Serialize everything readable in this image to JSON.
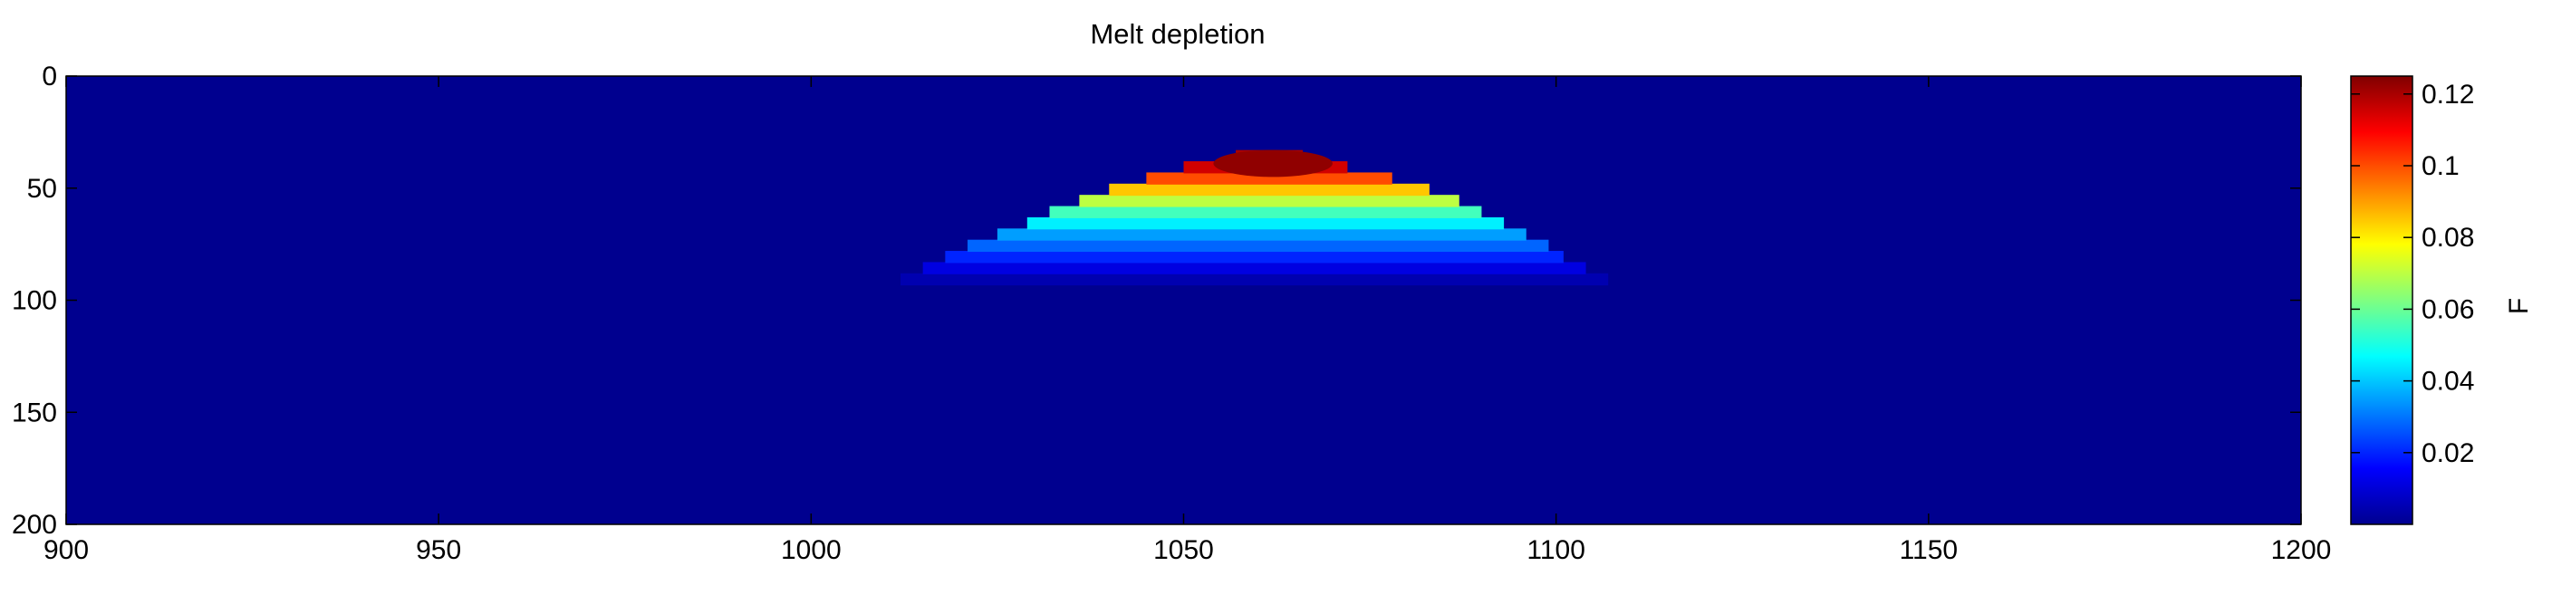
{
  "chart_data": {
    "type": "heatmap",
    "title": "Melt depletion",
    "xlabel": "",
    "ylabel": "",
    "xlim": [
      900,
      1200
    ],
    "ylim": [
      0,
      200
    ],
    "y_reversed": true,
    "x_ticks": [
      "900",
      "950",
      "1000",
      "1050",
      "1100",
      "1150",
      "1200"
    ],
    "y_ticks": [
      "0",
      "50",
      "100",
      "150",
      "200"
    ],
    "colormap": "jet",
    "background_value": 0,
    "colorbar": {
      "label": "F",
      "range": [
        0,
        0.125
      ],
      "ticks": [
        "0.02",
        "0.04",
        "0.06",
        "0.08",
        "0.1",
        "0.12"
      ]
    },
    "melt_region": {
      "peak_x": 1062,
      "peak_value": 0.123,
      "top_depth": 33,
      "rows": [
        {
          "depth": 33,
          "x_from": 1057,
          "x_to": 1066,
          "value": 0.12
        },
        {
          "depth": 38,
          "x_from": 1050,
          "x_to": 1072,
          "value": 0.115
        },
        {
          "depth": 43,
          "x_from": 1045,
          "x_to": 1078,
          "value": 0.1
        },
        {
          "depth": 48,
          "x_from": 1040,
          "x_to": 1083,
          "value": 0.085
        },
        {
          "depth": 53,
          "x_from": 1036,
          "x_to": 1087,
          "value": 0.07
        },
        {
          "depth": 58,
          "x_from": 1032,
          "x_to": 1090,
          "value": 0.055
        },
        {
          "depth": 63,
          "x_from": 1029,
          "x_to": 1093,
          "value": 0.045
        },
        {
          "depth": 68,
          "x_from": 1025,
          "x_to": 1096,
          "value": 0.035
        },
        {
          "depth": 73,
          "x_from": 1021,
          "x_to": 1099,
          "value": 0.028
        },
        {
          "depth": 78,
          "x_from": 1018,
          "x_to": 1101,
          "value": 0.02
        },
        {
          "depth": 83,
          "x_from": 1015,
          "x_to": 1104,
          "value": 0.012
        },
        {
          "depth": 88,
          "x_from": 1012,
          "x_to": 1107,
          "value": 0.006
        }
      ]
    }
  }
}
